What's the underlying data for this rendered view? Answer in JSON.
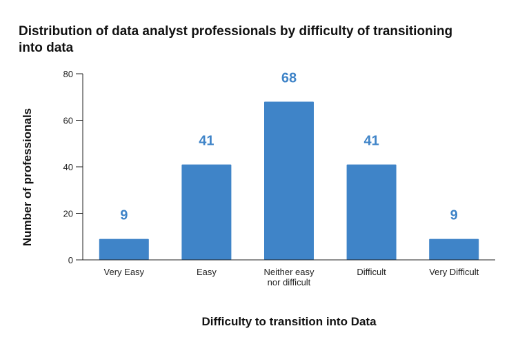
{
  "chart_data": {
    "type": "bar",
    "title": "Distribution of data analyst professionals by difficulty of transitioning into data",
    "xlabel": "Difficulty to transition into Data",
    "ylabel": "Number of professionals",
    "categories": [
      [
        "Very Easy"
      ],
      [
        "Easy"
      ],
      [
        "Neither easy",
        "nor difficult"
      ],
      [
        "Difficult"
      ],
      [
        "Very Difficult"
      ]
    ],
    "values": [
      9,
      41,
      68,
      41,
      9
    ],
    "data_labels": [
      "9",
      "41",
      "68",
      "41",
      "9"
    ],
    "ylim": [
      0,
      80
    ],
    "yticks": [
      0,
      20,
      40,
      60,
      80
    ],
    "ytick_labels": [
      "0",
      "20",
      "40",
      "60",
      "80"
    ],
    "bar_color": "#3f84c8",
    "label_color": "#3f84c8",
    "grid": false,
    "legend": "none"
  }
}
